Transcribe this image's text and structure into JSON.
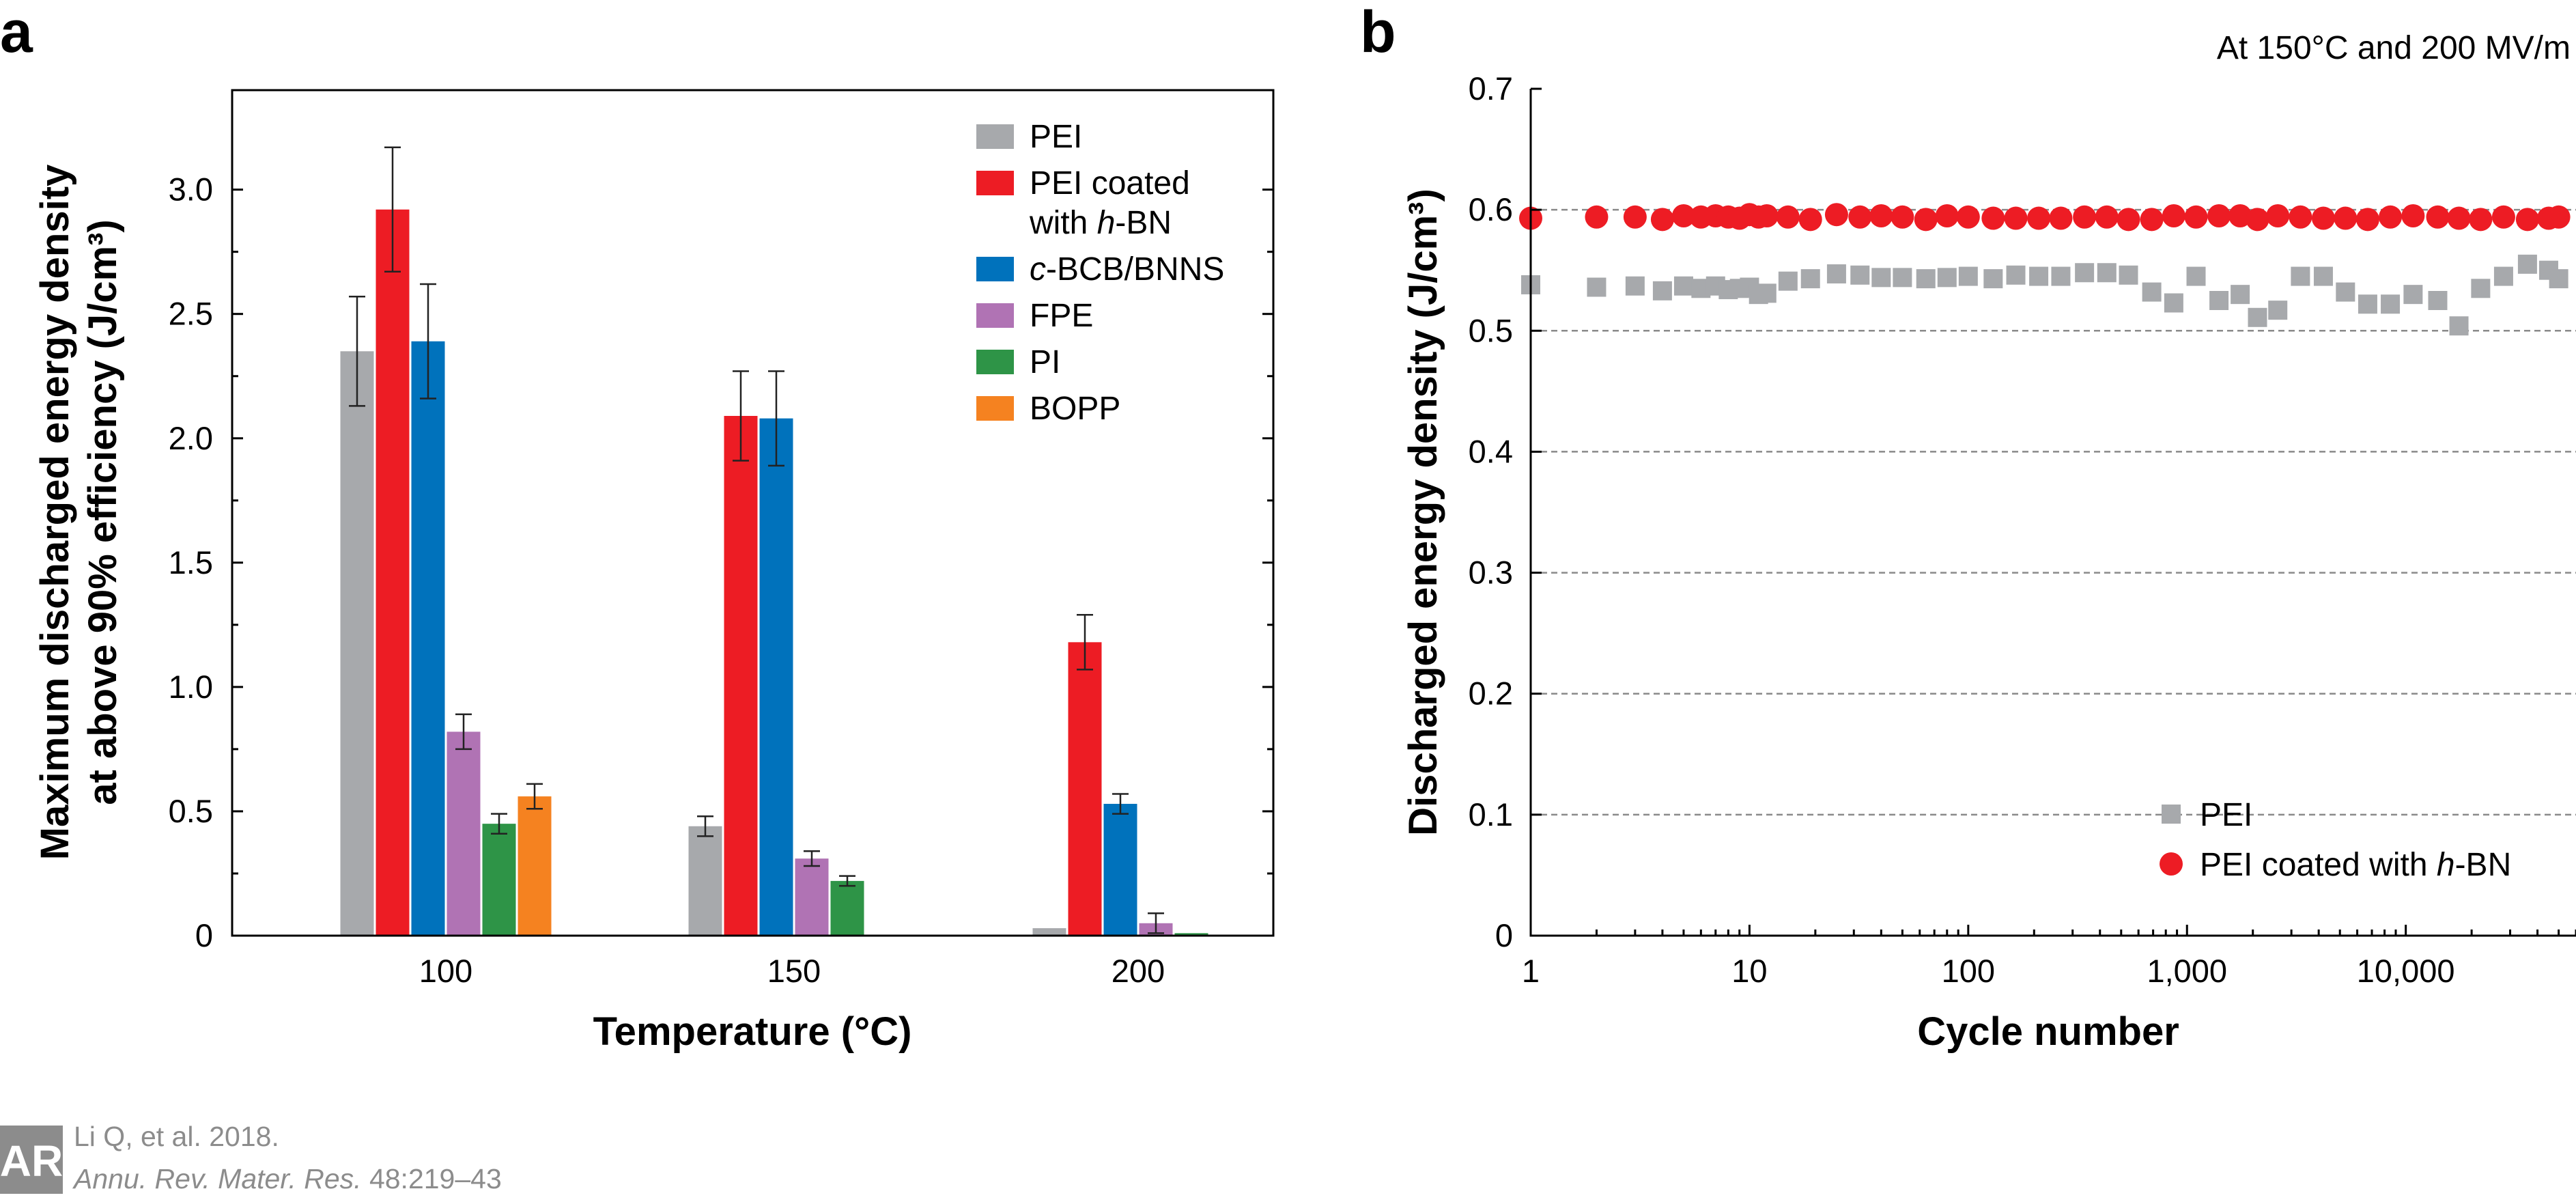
{
  "colors": {
    "PEI": "#a7a9ac",
    "PEI_hBN": "#ed1c24",
    "cBCB_BNNS": "#0072bc",
    "FPE": "#b073b4",
    "PI": "#2e9447",
    "BOPP": "#f58220",
    "grid": "#8a8a8a",
    "credit": "#8c8c8c"
  },
  "credit": {
    "line1": "Li Q, et al. 2018.",
    "journal": "Annu. Rev. Mater. Res.",
    "pages": " 48:219–43",
    "logo": "AR"
  },
  "chart_data": [
    {
      "panel": "a",
      "type": "bar",
      "xlabel": "Temperature (°C)",
      "ylabel_line1": "Maximum discharged energy density",
      "ylabel_line2": "at above 90% efficiency (J/cm³)",
      "categories": [
        "100",
        "150",
        "200"
      ],
      "ylim": [
        0,
        3.4
      ],
      "yticks": [
        "0",
        "0.5",
        "1.0",
        "1.5",
        "2.0",
        "2.5",
        "3.0"
      ],
      "legend_position": "top-right",
      "series": [
        {
          "name": "PEI",
          "key": "PEI",
          "values": [
            2.35,
            0.44,
            0.03
          ],
          "errors": [
            0.22,
            0.04,
            0.0
          ]
        },
        {
          "name_parts": [
            "PEI coated",
            "with ",
            "h",
            "-BN"
          ],
          "key": "PEI_hBN",
          "values": [
            2.92,
            2.09,
            1.18
          ],
          "errors": [
            0.25,
            0.18,
            0.11
          ]
        },
        {
          "name_parts": [
            "c",
            "-BCB/BNNS"
          ],
          "key": "cBCB_BNNS",
          "values": [
            2.39,
            2.08,
            0.53
          ],
          "errors": [
            0.23,
            0.19,
            0.04
          ]
        },
        {
          "name": "FPE",
          "key": "FPE",
          "values": [
            0.82,
            0.31,
            0.05
          ],
          "errors": [
            0.07,
            0.03,
            0.04
          ]
        },
        {
          "name": "PI",
          "key": "PI",
          "values": [
            0.45,
            0.22,
            0.01
          ],
          "errors": [
            0.04,
            0.02,
            0.0
          ]
        },
        {
          "name": "BOPP",
          "key": "BOPP",
          "values": [
            0.56,
            null,
            null
          ],
          "errors": [
            0.05,
            null,
            null
          ]
        }
      ]
    },
    {
      "panel": "b",
      "type": "scatter",
      "annotation": "At 150°C and 200 MV/m",
      "xlabel": "Cycle number",
      "ylabel": "Discharged energy density (J/cm³)",
      "xscale": "log",
      "xlim": [
        1,
        50000
      ],
      "ylim": [
        0,
        0.7
      ],
      "xticks": [
        {
          "value": 1,
          "label": "1"
        },
        {
          "value": 10,
          "label": "10"
        },
        {
          "value": 100,
          "label": "100"
        },
        {
          "value": 1000,
          "label": "1,000"
        },
        {
          "value": 10000,
          "label": "10,000"
        }
      ],
      "yticks": [
        "0",
        "0.1",
        "0.2",
        "0.3",
        "0.4",
        "0.5",
        "0.6",
        "0.7"
      ],
      "grid": "horizontal dashed",
      "legend_position": "bottom-right",
      "series": [
        {
          "name": "PEI",
          "key": "PEI",
          "marker": "square",
          "x": [
            1,
            2,
            3,
            4,
            5,
            6,
            7,
            8,
            9,
            10,
            11,
            12,
            15,
            19,
            25,
            32,
            40,
            50,
            64,
            80,
            100,
            130,
            165,
            210,
            265,
            340,
            430,
            540,
            690,
            870,
            1100,
            1400,
            1750,
            2100,
            2600,
            3300,
            4200,
            5300,
            6700,
            8500,
            10800,
            14000,
            17500,
            22000,
            28000,
            36000,
            45000,
            50000
          ],
          "y": [
            0.538,
            0.536,
            0.537,
            0.533,
            0.537,
            0.535,
            0.537,
            0.534,
            0.535,
            0.536,
            0.53,
            0.531,
            0.541,
            0.543,
            0.547,
            0.546,
            0.544,
            0.544,
            0.543,
            0.544,
            0.545,
            0.543,
            0.546,
            0.545,
            0.545,
            0.548,
            0.548,
            0.546,
            0.532,
            0.523,
            0.545,
            0.525,
            0.53,
            0.511,
            0.517,
            0.545,
            0.545,
            0.532,
            0.522,
            0.522,
            0.53,
            0.525,
            0.504,
            0.535,
            0.545,
            0.555,
            0.55,
            0.543
          ]
        },
        {
          "name_parts": [
            "PEI coated with ",
            "h",
            "-BN"
          ],
          "key": "PEI_hBN",
          "marker": "circle",
          "x": [
            1,
            2,
            3,
            4,
            5,
            6,
            7,
            8,
            9,
            10,
            11,
            12,
            15,
            19,
            25,
            32,
            40,
            50,
            64,
            80,
            100,
            130,
            165,
            210,
            265,
            340,
            430,
            540,
            690,
            870,
            1100,
            1400,
            1750,
            2100,
            2600,
            3300,
            4200,
            5300,
            6700,
            8500,
            10800,
            14000,
            17500,
            22000,
            28000,
            36000,
            45000,
            50000
          ],
          "y": [
            0.593,
            0.594,
            0.594,
            0.592,
            0.595,
            0.594,
            0.595,
            0.594,
            0.593,
            0.596,
            0.594,
            0.595,
            0.594,
            0.592,
            0.596,
            0.594,
            0.595,
            0.594,
            0.592,
            0.595,
            0.594,
            0.593,
            0.593,
            0.593,
            0.593,
            0.594,
            0.594,
            0.592,
            0.592,
            0.595,
            0.594,
            0.595,
            0.595,
            0.592,
            0.595,
            0.594,
            0.593,
            0.593,
            0.592,
            0.594,
            0.595,
            0.594,
            0.593,
            0.592,
            0.594,
            0.592,
            0.593,
            0.594
          ]
        }
      ]
    }
  ]
}
